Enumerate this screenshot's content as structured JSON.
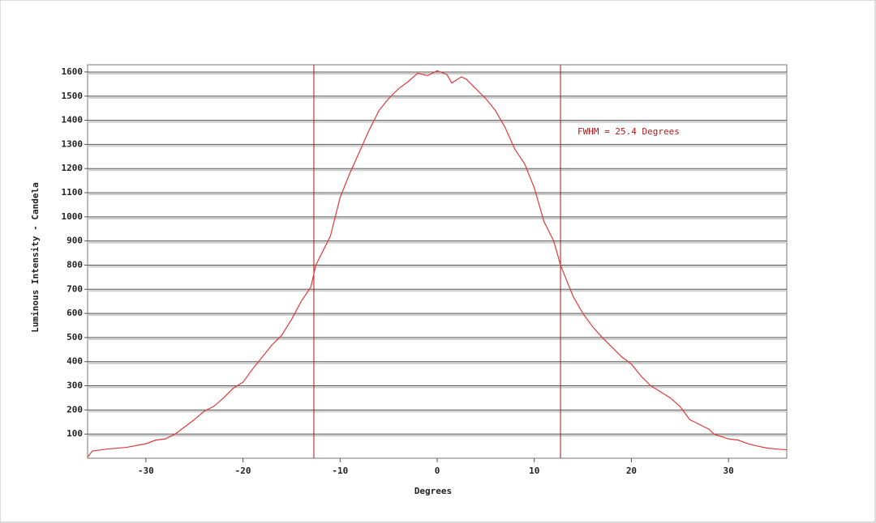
{
  "chart_data": {
    "type": "line",
    "x_label": "Degrees",
    "y_label": "Luminous Intensity - Candela",
    "annotation": "FWHM = 25.4 Degrees",
    "xlim": [
      -36,
      36
    ],
    "ylim": [
      0,
      1630
    ],
    "xticks": [
      -30,
      -20,
      -10,
      0,
      10,
      20,
      30
    ],
    "yticks": [
      100,
      200,
      300,
      400,
      500,
      600,
      700,
      800,
      900,
      1000,
      1100,
      1200,
      1300,
      1400,
      1500,
      1600
    ],
    "grid": true,
    "vlines": [
      -12.7,
      12.7
    ],
    "vline_color": "#b01818",
    "series": [
      {
        "color": "#e03a3a",
        "x": [
          -36,
          -35.5,
          -34,
          -32,
          -30,
          -29,
          -28,
          -27,
          -26,
          -25,
          -24,
          -23,
          -22,
          -21,
          -20,
          -19,
          -18,
          -17,
          -16,
          -15,
          -14,
          -13,
          -12.5,
          -12,
          -11,
          -10,
          -9,
          -8,
          -7,
          -6,
          -5,
          -4,
          -3,
          -2,
          -1,
          0,
          1,
          1.5,
          2.5,
          3,
          4,
          5,
          6,
          7,
          8,
          9,
          10,
          11,
          12,
          12.7,
          13.5,
          14,
          15,
          16,
          17,
          18,
          19,
          20,
          21,
          22,
          23,
          24,
          25,
          26,
          27,
          28,
          28.5,
          30,
          31,
          32,
          33,
          34,
          35,
          36
        ],
        "values": [
          5,
          30,
          38,
          45,
          60,
          75,
          80,
          100,
          130,
          160,
          195,
          215,
          250,
          290,
          315,
          370,
          420,
          470,
          510,
          575,
          650,
          710,
          800,
          840,
          920,
          1080,
          1180,
          1270,
          1360,
          1440,
          1490,
          1530,
          1560,
          1595,
          1585,
          1605,
          1590,
          1555,
          1580,
          1570,
          1530,
          1490,
          1440,
          1370,
          1280,
          1220,
          1120,
          980,
          900,
          800,
          720,
          670,
          600,
          545,
          500,
          460,
          420,
          390,
          340,
          300,
          275,
          250,
          215,
          160,
          140,
          120,
          100,
          80,
          75,
          60,
          50,
          42,
          38,
          35
        ]
      }
    ]
  }
}
